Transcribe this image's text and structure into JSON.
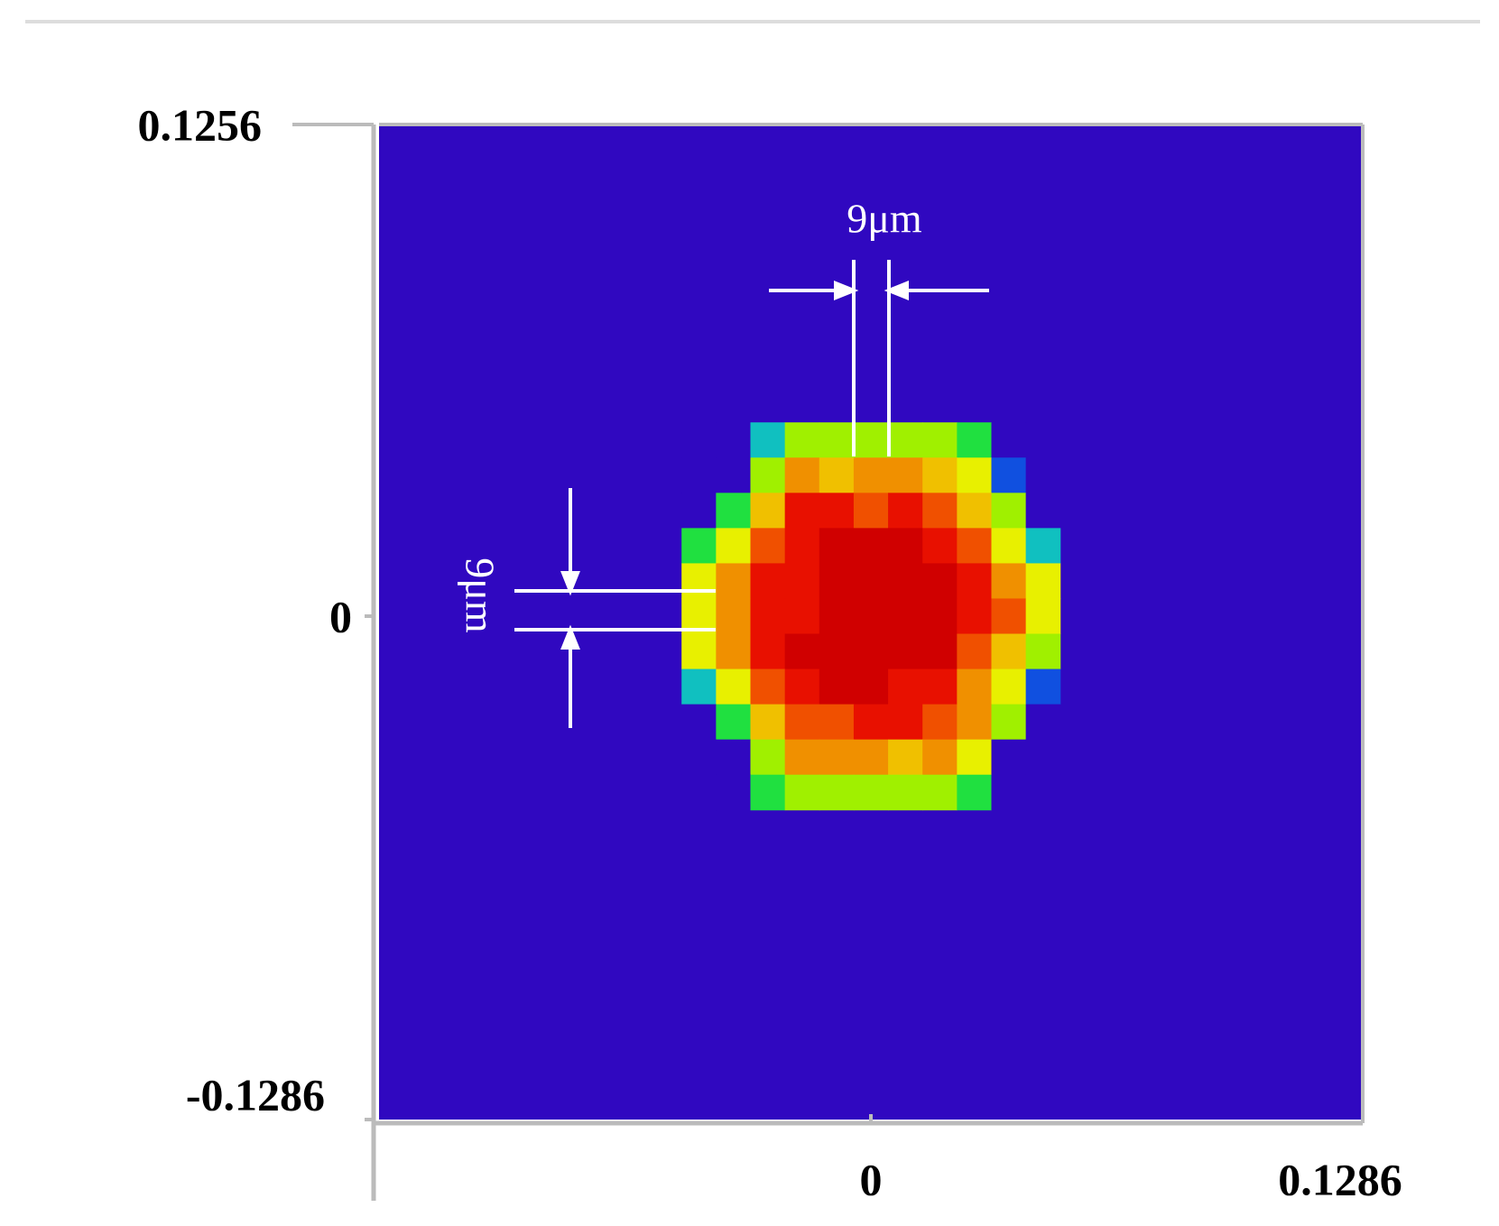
{
  "chart_data": {
    "type": "heatmap",
    "x": [
      -0.045,
      -0.036,
      -0.027,
      -0.018,
      -0.009,
      0,
      0.009,
      0.018,
      0.027,
      0.036,
      0.045
    ],
    "y": [
      0.045,
      0.036,
      0.027,
      0.018,
      0.009,
      0,
      -0.009,
      -0.018,
      -0.027,
      -0.036,
      -0.045
    ],
    "z": [
      [
        0,
        0,
        0.3,
        0.5,
        0.5,
        0.5,
        0.5,
        0.5,
        0.4,
        0,
        0
      ],
      [
        0,
        0,
        0.55,
        0.7,
        0.65,
        0.7,
        0.7,
        0.65,
        0.6,
        0.15,
        0
      ],
      [
        0,
        0.4,
        0.65,
        0.9,
        0.9,
        0.8,
        0.9,
        0.8,
        0.65,
        0.5,
        0
      ],
      [
        0.4,
        0.6,
        0.8,
        0.9,
        1,
        1,
        1,
        0.9,
        0.8,
        0.6,
        0.3
      ],
      [
        0.6,
        0.7,
        0.9,
        0.9,
        1,
        1,
        1,
        1,
        0.9,
        0.7,
        0.6
      ],
      [
        0.6,
        0.7,
        0.9,
        0.9,
        1,
        1,
        1,
        1,
        0.9,
        0.8,
        0.6
      ],
      [
        0.6,
        0.7,
        0.9,
        1,
        1,
        1,
        1,
        1,
        0.8,
        0.65,
        0.5
      ],
      [
        0.3,
        0.6,
        0.8,
        0.9,
        1,
        1,
        0.9,
        0.9,
        0.7,
        0.6,
        0.15
      ],
      [
        0,
        0.4,
        0.65,
        0.8,
        0.8,
        0.9,
        0.9,
        0.8,
        0.7,
        0.5,
        0
      ],
      [
        0,
        0,
        0.5,
        0.7,
        0.7,
        0.7,
        0.65,
        0.7,
        0.6,
        0,
        0
      ],
      [
        0,
        0,
        0.4,
        0.5,
        0.5,
        0.5,
        0.5,
        0.5,
        0.4,
        0,
        0
      ]
    ],
    "colorscale": [
      [
        0,
        "#3008c0"
      ],
      [
        0.15,
        "#1050e0"
      ],
      [
        0.3,
        "#10c0c0"
      ],
      [
        0.4,
        "#20e040"
      ],
      [
        0.5,
        "#a0f000"
      ],
      [
        0.6,
        "#e8f000"
      ],
      [
        0.65,
        "#f0c000"
      ],
      [
        0.7,
        "#f09000"
      ],
      [
        0.8,
        "#f05000"
      ],
      [
        0.9,
        "#e81000"
      ],
      [
        1,
        "#d00000"
      ]
    ],
    "xlim": [
      -0.1286,
      0.1286
    ],
    "xticks": [
      0,
      0.1286
    ],
    "ylim": [
      -0.1286,
      0.1256
    ],
    "yticks": [
      -0.1286,
      0,
      0.1256
    ],
    "annotations": [
      "9μm",
      "9μm"
    ]
  }
}
